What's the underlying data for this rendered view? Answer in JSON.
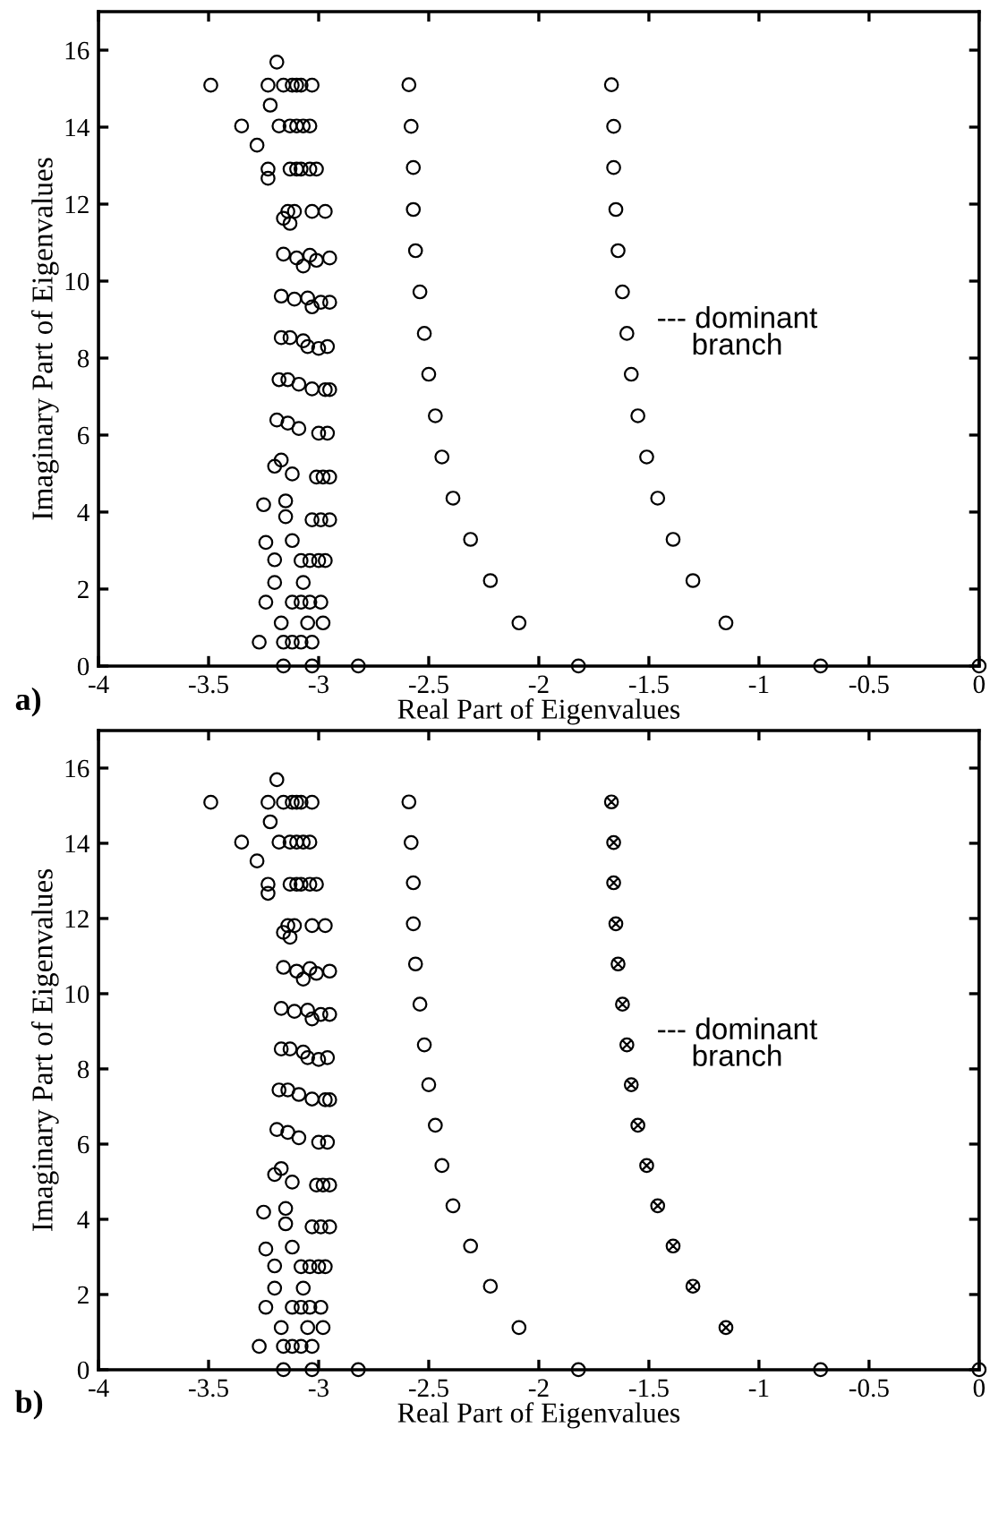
{
  "chart_data": [
    {
      "type": "scatter",
      "xlabel": "Real Part of Eigenvalues",
      "ylabel": "Imaginary Part of Eigenvalues",
      "xlim": [
        -4,
        0
      ],
      "ylim": [
        0,
        17
      ],
      "xticks": [
        -4,
        -3.5,
        -3,
        -2.5,
        -2,
        -1.5,
        -1,
        -0.5,
        0
      ],
      "yticks": [
        0,
        2,
        4,
        6,
        8,
        10,
        12,
        14,
        16
      ],
      "grid": false,
      "legend": false,
      "marker": "circle",
      "series": [
        {
          "color": "#000000",
          "x": [
            -3.19,
            -3.49,
            -3.23,
            -3.16,
            -3.12,
            -3.1,
            -3.08,
            -3.03,
            -3.22,
            -3.35,
            -3.18,
            -3.13,
            -3.1,
            -3.07,
            -3.04,
            -3.28,
            -3.23,
            -3.23,
            -3.13,
            -3.1,
            -3.08,
            -3.04,
            -3.01,
            -3.14,
            -3.11,
            -3.03,
            -2.97,
            -3.16,
            -3.13,
            -3.16,
            -3.1,
            -3.07,
            -3.04,
            -3.01,
            -2.95,
            -3.17,
            -3.11,
            -3.05,
            -3.03,
            -2.99,
            -2.95,
            -3.17,
            -3.13,
            -3.07,
            -3.05,
            -3.0,
            -2.96,
            -3.18,
            -3.14,
            -3.09,
            -3.03,
            -2.97,
            -2.95,
            -3.19,
            -3.14,
            -3.09,
            -3.0,
            -2.96,
            -3.17,
            -3.2,
            -3.12,
            -3.01,
            -2.98,
            -2.95,
            -3.25,
            -3.15,
            -3.15,
            -3.03,
            -2.99,
            -2.95,
            -3.24,
            -3.12,
            -3.2,
            -3.08,
            -3.04,
            -3.0,
            -2.97,
            -3.2,
            -3.07,
            -3.24,
            -3.12,
            -3.08,
            -3.04,
            -2.99,
            -3.17,
            -3.05,
            -2.98,
            -3.27,
            -3.16,
            -3.12,
            -3.08,
            -3.03,
            -3.16,
            -3.03,
            -2.82
          ],
          "values": [
            15.69,
            15.09,
            15.09,
            15.09,
            15.09,
            15.09,
            15.09,
            15.09,
            14.57,
            14.03,
            14.03,
            14.03,
            14.03,
            14.03,
            14.03,
            13.53,
            12.91,
            12.67,
            12.91,
            12.91,
            12.91,
            12.91,
            12.91,
            11.81,
            11.81,
            11.81,
            11.81,
            11.63,
            11.5,
            10.7,
            10.6,
            10.39,
            10.67,
            10.54,
            10.6,
            9.61,
            9.53,
            9.56,
            9.33,
            9.45,
            9.45,
            8.53,
            8.53,
            8.45,
            8.3,
            8.25,
            8.3,
            7.44,
            7.44,
            7.32,
            7.2,
            7.18,
            7.18,
            6.39,
            6.31,
            6.17,
            6.05,
            6.05,
            5.35,
            5.19,
            4.99,
            4.91,
            4.91,
            4.91,
            4.19,
            4.29,
            3.88,
            3.8,
            3.8,
            3.8,
            3.21,
            3.26,
            2.76,
            2.74,
            2.74,
            2.74,
            2.74,
            2.17,
            2.17,
            1.66,
            1.66,
            1.66,
            1.66,
            1.66,
            1.12,
            1.12,
            1.12,
            0.62,
            0.62,
            0.62,
            0.62,
            0.62,
            0,
            0,
            0
          ]
        },
        {
          "color": "#000000",
          "x": [
            -2.59,
            -2.58,
            -2.57,
            -2.57,
            -2.56,
            -2.54,
            -2.52,
            -2.5,
            -2.47,
            -2.44,
            -2.39,
            -2.31,
            -2.22,
            -2.09,
            -1.82
          ],
          "values": [
            15.1,
            14.02,
            12.95,
            11.86,
            10.79,
            9.72,
            8.64,
            7.58,
            6.5,
            5.43,
            4.36,
            3.29,
            2.22,
            1.12,
            0
          ]
        },
        {
          "color": "#000000",
          "x": [
            -1.67,
            -1.66,
            -1.66,
            -1.65,
            -1.64,
            -1.62,
            -1.6,
            -1.58,
            -1.55,
            -1.51,
            -1.46,
            -1.39,
            -1.3,
            -1.15,
            -0.72,
            0
          ],
          "values": [
            15.1,
            14.02,
            12.95,
            11.86,
            10.79,
            9.72,
            8.64,
            7.58,
            6.5,
            5.43,
            4.36,
            3.29,
            2.22,
            1.12,
            0,
            0
          ]
        }
      ],
      "annotations": [
        {
          "text": "--- dominant\nbranch",
          "x": -1.6,
          "y": 8.64
        },
        "a)"
      ]
    },
    {
      "type": "scatter",
      "xlabel": "Real Part of Eigenvalues",
      "ylabel": "Imaginary Part of Eigenvalues",
      "xlim": [
        -4,
        0
      ],
      "ylim": [
        0,
        17
      ],
      "xticks": [
        -4,
        -3.5,
        -3,
        -2.5,
        -2,
        -1.5,
        -1,
        -0.5,
        0
      ],
      "yticks": [
        0,
        2,
        4,
        6,
        8,
        10,
        12,
        14,
        16
      ],
      "grid": false,
      "legend": false,
      "marker": "circle",
      "series": [
        {
          "color": "#000000",
          "x": [
            -3.19,
            -3.49,
            -3.23,
            -3.16,
            -3.12,
            -3.1,
            -3.08,
            -3.03,
            -3.22,
            -3.35,
            -3.18,
            -3.13,
            -3.1,
            -3.07,
            -3.04,
            -3.28,
            -3.23,
            -3.23,
            -3.13,
            -3.1,
            -3.08,
            -3.04,
            -3.01,
            -3.14,
            -3.11,
            -3.03,
            -2.97,
            -3.16,
            -3.13,
            -3.16,
            -3.1,
            -3.07,
            -3.04,
            -3.01,
            -2.95,
            -3.17,
            -3.11,
            -3.05,
            -3.03,
            -2.99,
            -2.95,
            -3.17,
            -3.13,
            -3.07,
            -3.05,
            -3.0,
            -2.96,
            -3.18,
            -3.14,
            -3.09,
            -3.03,
            -2.97,
            -2.95,
            -3.19,
            -3.14,
            -3.09,
            -3.0,
            -2.96,
            -3.17,
            -3.2,
            -3.12,
            -3.01,
            -2.98,
            -2.95,
            -3.25,
            -3.15,
            -3.15,
            -3.03,
            -2.99,
            -2.95,
            -3.24,
            -3.12,
            -3.2,
            -3.08,
            -3.04,
            -3.0,
            -2.97,
            -3.2,
            -3.07,
            -3.24,
            -3.12,
            -3.08,
            -3.04,
            -2.99,
            -3.17,
            -3.05,
            -2.98,
            -3.27,
            -3.16,
            -3.12,
            -3.08,
            -3.03,
            -3.16,
            -3.03,
            -2.82
          ],
          "values": [
            15.69,
            15.09,
            15.09,
            15.09,
            15.09,
            15.09,
            15.09,
            15.09,
            14.57,
            14.03,
            14.03,
            14.03,
            14.03,
            14.03,
            14.03,
            13.53,
            12.91,
            12.67,
            12.91,
            12.91,
            12.91,
            12.91,
            12.91,
            11.81,
            11.81,
            11.81,
            11.81,
            11.63,
            11.5,
            10.7,
            10.6,
            10.39,
            10.67,
            10.54,
            10.6,
            9.61,
            9.53,
            9.56,
            9.33,
            9.45,
            9.45,
            8.53,
            8.53,
            8.45,
            8.3,
            8.25,
            8.3,
            7.44,
            7.44,
            7.32,
            7.2,
            7.18,
            7.18,
            6.39,
            6.31,
            6.17,
            6.05,
            6.05,
            5.35,
            5.19,
            4.99,
            4.91,
            4.91,
            4.91,
            4.19,
            4.29,
            3.88,
            3.8,
            3.8,
            3.8,
            3.21,
            3.26,
            2.76,
            2.74,
            2.74,
            2.74,
            2.74,
            2.17,
            2.17,
            1.66,
            1.66,
            1.66,
            1.66,
            1.66,
            1.12,
            1.12,
            1.12,
            0.62,
            0.62,
            0.62,
            0.62,
            0.62,
            0,
            0,
            0
          ]
        },
        {
          "color": "#000000",
          "x": [
            -2.59,
            -2.58,
            -2.57,
            -2.57,
            -2.56,
            -2.54,
            -2.52,
            -2.5,
            -2.47,
            -2.44,
            -2.39,
            -2.31,
            -2.22,
            -2.09,
            -1.82
          ],
          "values": [
            15.1,
            14.02,
            12.95,
            11.86,
            10.79,
            9.72,
            8.64,
            7.58,
            6.5,
            5.43,
            4.36,
            3.29,
            2.22,
            1.12,
            0
          ]
        },
        {
          "color": "#000000",
          "marker": "cross",
          "x": [
            -1.67,
            -1.66,
            -1.66,
            -1.65,
            -1.64,
            -1.62,
            -1.6,
            -1.58,
            -1.55,
            -1.51,
            -1.46,
            -1.39,
            -1.3,
            -1.15
          ],
          "values": [
            15.1,
            14.02,
            12.95,
            11.86,
            10.79,
            9.72,
            8.64,
            7.58,
            6.5,
            5.43,
            4.36,
            3.29,
            2.22,
            1.12
          ]
        },
        {
          "color": "#000000",
          "x": [
            -0.72,
            0
          ],
          "values": [
            0,
            0
          ]
        }
      ],
      "annotations": [
        {
          "text": "--- dominant\nbranch",
          "x": -1.6,
          "y": 8.64
        },
        "b)"
      ]
    }
  ]
}
